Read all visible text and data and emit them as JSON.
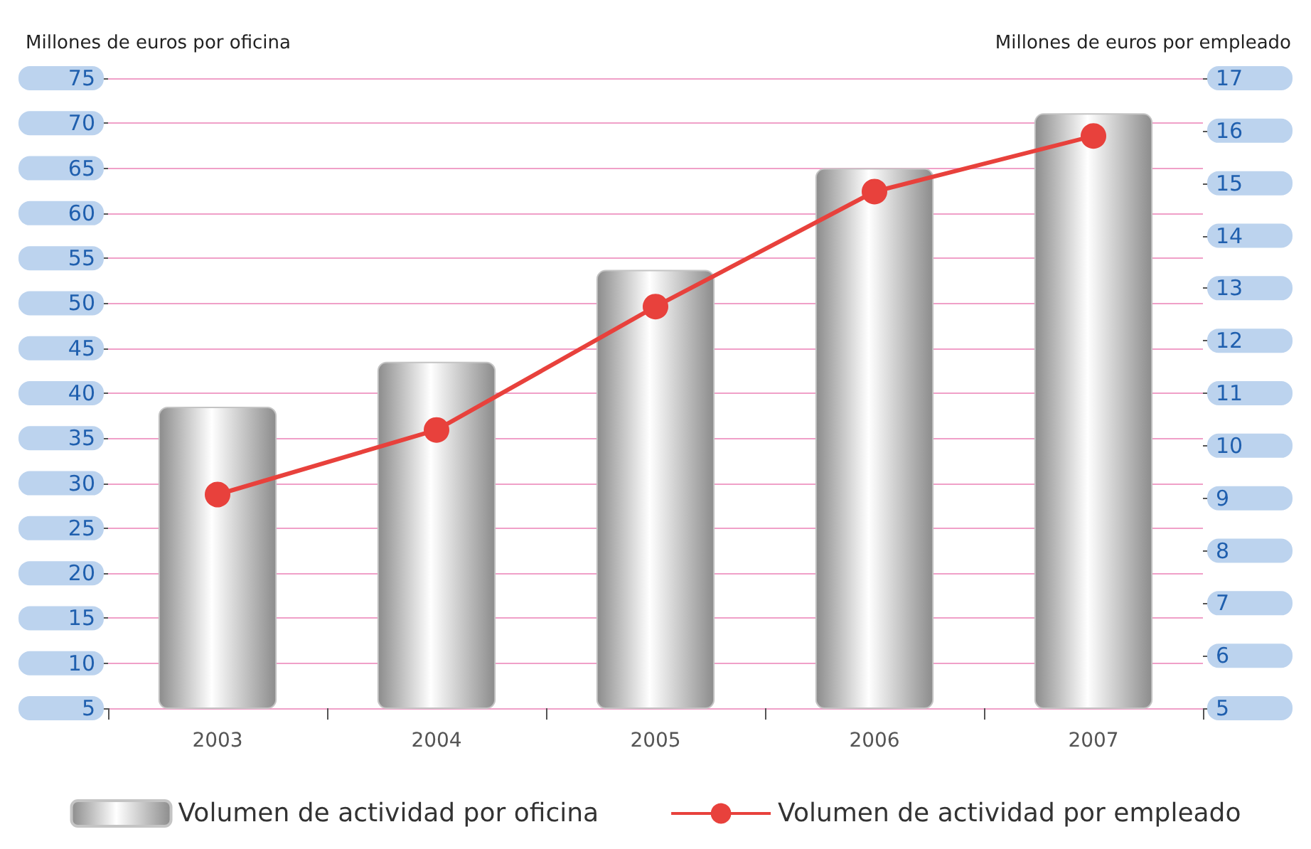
{
  "chart_data": {
    "type": "bar",
    "categories": [
      "2003",
      "2004",
      "2005",
      "2006",
      "2007"
    ],
    "ylabel": "Millones de euros por oficina",
    "y2label": "Millones de euros por empleado",
    "series": [
      {
        "name": "Volumen de actividad por oficina",
        "color": "#c4c4c4",
        "values": [
          38.5,
          43.5,
          53.7,
          65,
          71.1
        ]
      },
      {
        "name": "Volumen de actividad por empleado",
        "type": "line",
        "color": "#e8413c",
        "axis": "y2",
        "values": [
          9.07,
          10.3,
          12.65,
          14.84,
          15.9
        ]
      }
    ],
    "ylim": [
      5,
      75
    ],
    "yticks": [
      5,
      10,
      15,
      20,
      25,
      30,
      35,
      40,
      45,
      50,
      55,
      60,
      65,
      70,
      75
    ],
    "y2lim": [
      5,
      17
    ],
    "y2ticks": [
      5,
      6,
      7,
      8,
      9,
      10,
      11,
      12,
      13,
      14,
      15,
      16,
      17
    ],
    "grid": "y",
    "legend": "bottom",
    "marker": "circle"
  }
}
